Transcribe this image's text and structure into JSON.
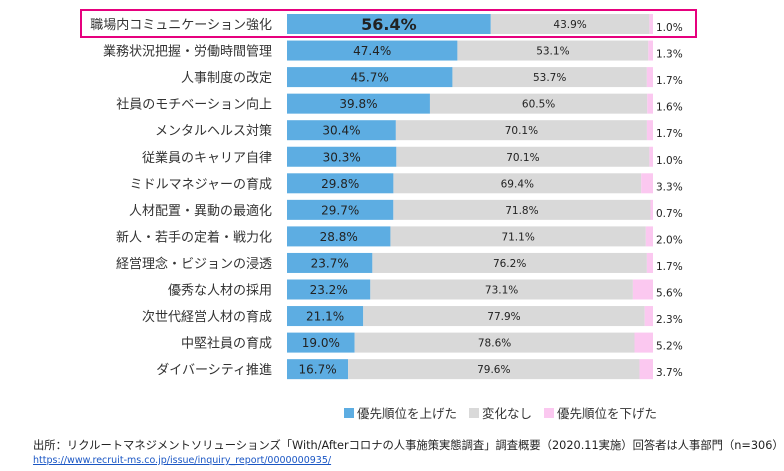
{
  "chart_data": {
    "type": "bar",
    "orientation": "horizontal",
    "stacked": true,
    "percent_stacked": true,
    "categories": [
      "職場内コミュニケーション強化",
      "業務状況把握・労働時間管理",
      "人事制度の改定",
      "社員のモチベーション向上",
      "メンタルヘルス対策",
      "従業員のキャリア自律",
      "ミドルマネジャーの育成",
      "人材配置・異動の最適化",
      "新人・若手の定着・戦力化",
      "経営理念・ビジョンの浸透",
      "優秀な人材の採用",
      "次世代経営人材の育成",
      "中堅社員の育成",
      "ダイバーシティ推進"
    ],
    "series": [
      {
        "name": "優先順位を上げた",
        "color": "#5dade2",
        "values": [
          56.4,
          47.4,
          45.7,
          39.8,
          30.4,
          30.3,
          29.8,
          29.7,
          28.8,
          23.7,
          23.2,
          21.1,
          19.0,
          16.7
        ]
      },
      {
        "name": "変化なし",
        "color": "#d9d9d9",
        "values": [
          43.9,
          53.1,
          53.7,
          60.5,
          70.1,
          70.1,
          69.4,
          71.8,
          71.1,
          76.2,
          73.1,
          77.9,
          78.6,
          79.6
        ]
      },
      {
        "name": "優先順位を下げた",
        "color": "#fbc8f0",
        "values": [
          1.0,
          1.3,
          1.7,
          1.6,
          1.7,
          1.0,
          3.3,
          0.7,
          2.0,
          1.7,
          5.6,
          2.3,
          5.2,
          3.7
        ]
      }
    ],
    "labels": [
      [
        "56.4%",
        "43.9%",
        "1.0%"
      ],
      [
        "47.4%",
        "53.1%",
        "1.3%"
      ],
      [
        "45.7%",
        "53.7%",
        "1.7%"
      ],
      [
        "39.8%",
        "60.5%",
        "1.6%"
      ],
      [
        "30.4%",
        "70.1%",
        "1.7%"
      ],
      [
        "30.3%",
        "70.1%",
        "1.0%"
      ],
      [
        "29.8%",
        "69.4%",
        "3.3%"
      ],
      [
        "29.7%",
        "71.8%",
        "0.7%"
      ],
      [
        "28.8%",
        "71.1%",
        "2.0%"
      ],
      [
        "23.7%",
        "76.2%",
        "1.7%"
      ],
      [
        "23.2%",
        "73.1%",
        "5.6%"
      ],
      [
        "21.1%",
        "77.9%",
        "2.3%"
      ],
      [
        "19.0%",
        "78.6%",
        "5.2%"
      ],
      [
        "16.7%",
        "79.6%",
        "3.7%"
      ]
    ],
    "highlight_category": "職場内コミュニケーション強化",
    "highlight_color": "#e6007e",
    "legend_position": "bottom"
  },
  "source": {
    "text": "出所：リクルートマネジメントソリューションズ「With/Afterコロナの人事施策実態調査」調査概要（2020.11実施）回答者は人事部門（n=306）",
    "url": "https://www.recruit-ms.co.jp/issue/inquiry_report/0000000935/"
  }
}
